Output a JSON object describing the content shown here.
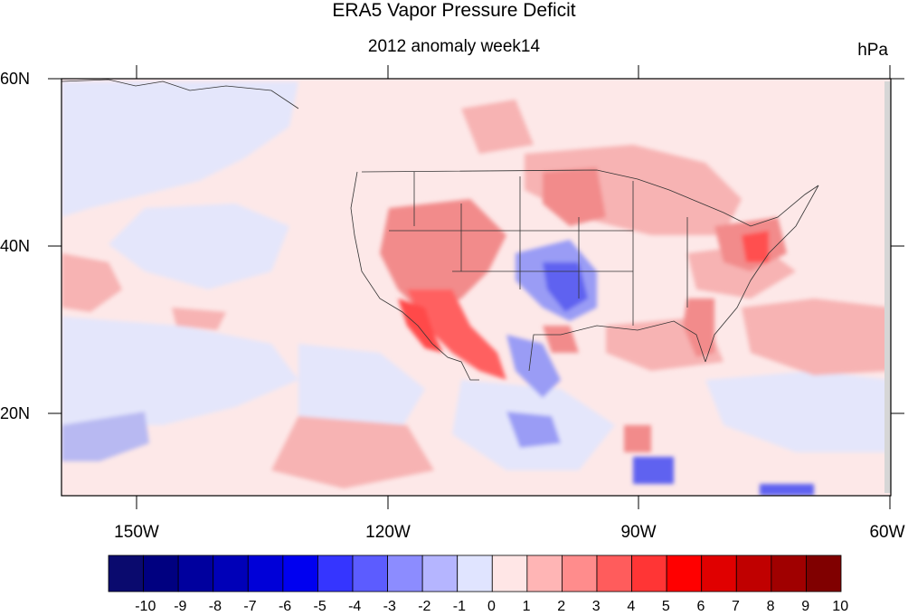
{
  "title": "ERA5 Vapor Pressure Deficit",
  "subtitle": "2012 anomaly week14",
  "units": "hPa",
  "lat_labels": [
    "60N",
    "40N",
    "20N"
  ],
  "lon_labels": [
    "150W",
    "120W",
    "90W",
    "60W"
  ],
  "colorbar": {
    "labels": [
      "-10",
      "-9",
      "-8",
      "-7",
      "-6",
      "-5",
      "-4",
      "-3",
      "-2",
      "-1",
      "0",
      "1",
      "2",
      "3",
      "4",
      "5",
      "6",
      "7",
      "8",
      "9",
      "10"
    ],
    "colors": [
      "#0a0a6e",
      "#000080",
      "#00009e",
      "#0000b8",
      "#0000d8",
      "#0000f0",
      "#3535ff",
      "#5c5cff",
      "#8c8cff",
      "#b5b5ff",
      "#e0e4ff",
      "#ffe6e6",
      "#ffb5b5",
      "#ff8c8c",
      "#ff5c5c",
      "#ff3535",
      "#ff0000",
      "#e00000",
      "#c00000",
      "#a00000",
      "#800000"
    ]
  },
  "map": {
    "lon_range": [
      -160,
      -60
    ],
    "lat_range": [
      10,
      60
    ],
    "variable": "Vapor Pressure Deficit anomaly"
  }
}
